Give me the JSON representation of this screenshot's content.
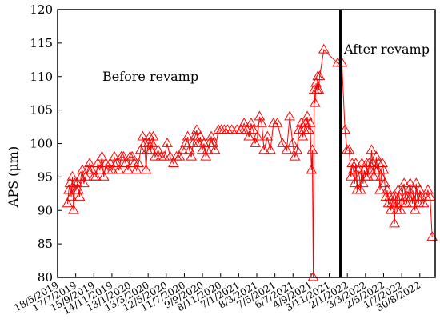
{
  "chart_data": {
    "type": "line",
    "ylabel": "APS (μm)",
    "xlabel": "",
    "ylim": [
      80,
      120
    ],
    "yticks": [
      80,
      85,
      90,
      95,
      100,
      105,
      110,
      115,
      120
    ],
    "xlim": [
      "2019-05-18",
      "2022-10-20"
    ],
    "xtick_labels": [
      "18/5/2019",
      "17/7/2019",
      "15/9/2019",
      "14/11/2019",
      "13/1/2020",
      "13/3/2020",
      "12/5/2020",
      "11/7/2020",
      "9/9/2020",
      "8/11/2020",
      "7/1/2021",
      "8/3/2021",
      "7/5/2021",
      "6/7/2021",
      "4/9/2021",
      "3/11/2021",
      "2/1/2022",
      "3/3/2022",
      "2/5/2022",
      "1/7/2022",
      "30/8/2022"
    ],
    "grid": false,
    "marker": "open-triangle",
    "series_color": "#ff0000",
    "divider_date": "2021-12-10",
    "annotations": {
      "before": "Before revamp",
      "after": "After revamp"
    },
    "series": [
      {
        "x": [
          "2019-06-20",
          "2019-06-24",
          "2019-06-28",
          "2019-07-02",
          "2019-07-06",
          "2019-07-10",
          "2019-07-14",
          "2019-07-18",
          "2019-07-22",
          "2019-07-26",
          "2019-07-30",
          "2019-08-03",
          "2019-08-08",
          "2019-08-13",
          "2019-08-19",
          "2019-08-25",
          "2019-09-01",
          "2019-09-08",
          "2019-09-15",
          "2019-09-22",
          "2019-09-28",
          "2019-10-05",
          "2019-10-12",
          "2019-10-18",
          "2019-10-25",
          "2019-11-01",
          "2019-11-08",
          "2019-11-15",
          "2019-11-22",
          "2019-11-30",
          "2019-12-07",
          "2019-12-15",
          "2019-12-22",
          "2019-12-30",
          "2020-01-06",
          "2020-01-13",
          "2020-01-20",
          "2020-01-27",
          "2020-02-03",
          "2020-02-10",
          "2020-02-17",
          "2020-02-24",
          "2020-03-02",
          "2020-03-06",
          "2020-03-10",
          "2020-03-14",
          "2020-03-18",
          "2020-03-22",
          "2020-03-26",
          "2020-03-30",
          "2020-04-05",
          "2020-04-15",
          "2020-04-25",
          "2020-05-05",
          "2020-05-15",
          "2020-05-25",
          "2020-06-05",
          "2020-06-15",
          "2020-06-25",
          "2020-07-05",
          "2020-07-15",
          "2020-07-22",
          "2020-07-28",
          "2020-08-03",
          "2020-08-09",
          "2020-08-15",
          "2020-08-21",
          "2020-08-27",
          "2020-09-02",
          "2020-09-08",
          "2020-09-14",
          "2020-09-20",
          "2020-09-26",
          "2020-10-02",
          "2020-10-08",
          "2020-10-14",
          "2020-10-20",
          "2020-11-01",
          "2020-11-10",
          "2020-11-20",
          "2020-12-01",
          "2020-12-15",
          "2021-01-01",
          "2021-01-15",
          "2021-01-25",
          "2021-02-03",
          "2021-02-10",
          "2021-02-17",
          "2021-02-24",
          "2021-03-03",
          "2021-03-10",
          "2021-03-17",
          "2021-03-24",
          "2021-04-01",
          "2021-04-12",
          "2021-04-22",
          "2021-05-02",
          "2021-05-15",
          "2021-06-01",
          "2021-06-15",
          "2021-06-25",
          "2021-07-05",
          "2021-07-12",
          "2021-07-19",
          "2021-07-26",
          "2021-08-02",
          "2021-08-07",
          "2021-08-12",
          "2021-08-17",
          "2021-08-22",
          "2021-08-27",
          "2021-09-01",
          "2021-09-05",
          "2021-09-08",
          "2021-09-11",
          "2021-09-14",
          "2021-09-17",
          "2021-09-20",
          "2021-09-23",
          "2021-09-26",
          "2021-09-29",
          "2021-10-02",
          "2021-10-16",
          "2021-12-01",
          "2021-12-15",
          "2021-12-25",
          "2022-01-01",
          "2022-01-08",
          "2022-01-14",
          "2022-01-18",
          "2022-01-22",
          "2022-01-26",
          "2022-01-30",
          "2022-02-03",
          "2022-02-07",
          "2022-02-11",
          "2022-02-15",
          "2022-02-19",
          "2022-02-23",
          "2022-02-27",
          "2022-03-03",
          "2022-03-07",
          "2022-03-11",
          "2022-03-15",
          "2022-03-19",
          "2022-03-23",
          "2022-03-27",
          "2022-03-31",
          "2022-04-04",
          "2022-04-08",
          "2022-04-12",
          "2022-04-16",
          "2022-04-20",
          "2022-04-24",
          "2022-04-28",
          "2022-05-02",
          "2022-05-06",
          "2022-05-10",
          "2022-05-14",
          "2022-05-18",
          "2022-05-22",
          "2022-05-26",
          "2022-05-30",
          "2022-06-03",
          "2022-06-07",
          "2022-06-11",
          "2022-06-15",
          "2022-06-19",
          "2022-06-23",
          "2022-06-27",
          "2022-07-01",
          "2022-07-05",
          "2022-07-09",
          "2022-07-13",
          "2022-07-17",
          "2022-07-21",
          "2022-07-25",
          "2022-07-29",
          "2022-08-02",
          "2022-08-06",
          "2022-08-10",
          "2022-08-14",
          "2022-08-18",
          "2022-08-22",
          "2022-08-26",
          "2022-08-30",
          "2022-09-05",
          "2022-09-12",
          "2022-09-19",
          "2022-09-26",
          "2022-10-03",
          "2022-10-10"
        ],
        "y": [
          91,
          93,
          94,
          92,
          95,
          90,
          94,
          93,
          94,
          93,
          92,
          95,
          96,
          94,
          95,
          96,
          97,
          96,
          95,
          95,
          97,
          96,
          98,
          95,
          97,
          96,
          97,
          96,
          98,
          97,
          96,
          98,
          98,
          97,
          96,
          98,
          98,
          97,
          96,
          97,
          99,
          101,
          100,
          96,
          99,
          100,
          101,
          99,
          100,
          101,
          98,
          99,
          98,
          98,
          100,
          98,
          97,
          98,
          98,
          99,
          100,
          101,
          99,
          98,
          100,
          101,
          102,
          100,
          101,
          99,
          100,
          98,
          99,
          100,
          101,
          100,
          99,
          102,
          102,
          102,
          102,
          102,
          102,
          102,
          103,
          102,
          101,
          103,
          102,
          100,
          101,
          104,
          103,
          99,
          101,
          99,
          103,
          103,
          100,
          99,
          104,
          100,
          98,
          99,
          102,
          103,
          101,
          102,
          103,
          104,
          102,
          103,
          96,
          99,
          80,
          108,
          106,
          109,
          108,
          110,
          108,
          110,
          114,
          112,
          112,
          102,
          99,
          99,
          95,
          97,
          96,
          94,
          97,
          93,
          96,
          95,
          93,
          97,
          94,
          96,
          95,
          97,
          95,
          97,
          96,
          99,
          97,
          95,
          96,
          98,
          96,
          97,
          93,
          95,
          97,
          96,
          94,
          92,
          93,
          91,
          92,
          90,
          91,
          92,
          88,
          92,
          90,
          93,
          92,
          90,
          91,
          93,
          94,
          92,
          91,
          92,
          93,
          94,
          92,
          91,
          93,
          90,
          94,
          92,
          91,
          93,
          92,
          91,
          92,
          93,
          92,
          86
        ]
      }
    ]
  }
}
